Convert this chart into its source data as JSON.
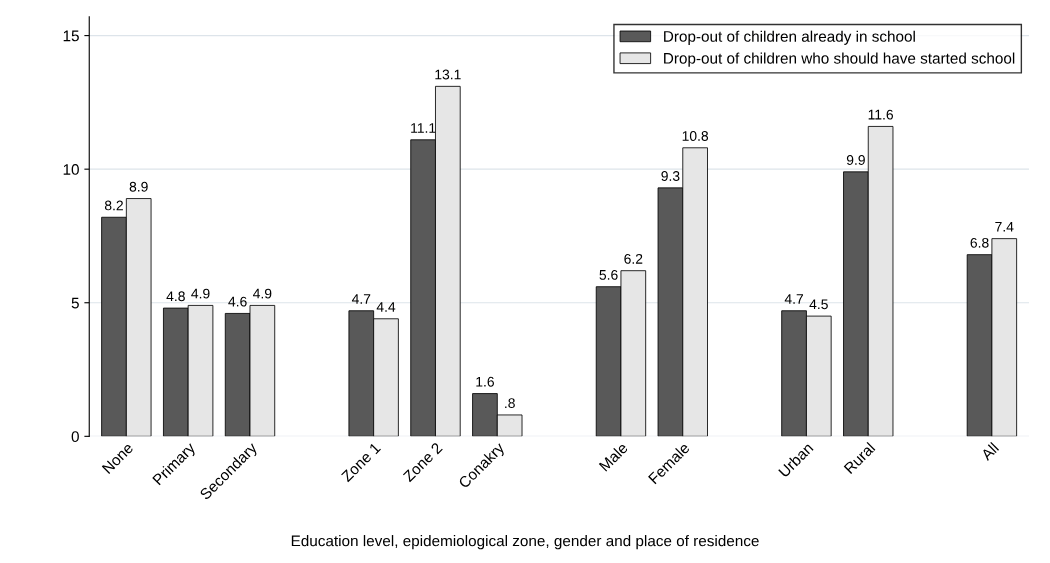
{
  "chart_data": {
    "type": "bar",
    "xlabel": "Education level, epidemiological zone, gender and place of residence",
    "categories": [
      "None",
      "Primary",
      "Secondary",
      null,
      "Zone 1",
      "Zone 2",
      "Conakry",
      null,
      "Male",
      "Female",
      null,
      "Urban",
      "Rural",
      null,
      "All"
    ],
    "series": [
      {
        "name": "Drop-out of children already in school",
        "color": "#595959",
        "values": [
          8.2,
          4.8,
          4.6,
          null,
          4.7,
          11.1,
          1.6,
          null,
          5.6,
          9.3,
          null,
          4.7,
          9.9,
          null,
          6.8
        ],
        "value_labels": [
          "8.2",
          "4.8",
          "4.6",
          null,
          "4.7",
          "11.1",
          "1.6",
          null,
          "5.6",
          "9.3",
          null,
          "4.7",
          "9.9",
          null,
          "6.8"
        ]
      },
      {
        "name": "Drop-out of children who should have started school",
        "color": "#e6e6e6",
        "values": [
          8.9,
          4.9,
          4.9,
          null,
          4.4,
          13.1,
          0.8,
          null,
          6.2,
          10.8,
          null,
          4.5,
          11.6,
          null,
          7.4
        ],
        "value_labels": [
          "8.9",
          "4.9",
          "4.9",
          null,
          "4.4",
          "13.1",
          ".8",
          null,
          "6.2",
          "10.8",
          null,
          "4.5",
          "11.6",
          null,
          "7.4"
        ]
      }
    ],
    "ylim": [
      0,
      15.7
    ],
    "yticks": [
      0,
      5,
      10,
      15
    ],
    "grid": "y",
    "legend": "top right"
  }
}
